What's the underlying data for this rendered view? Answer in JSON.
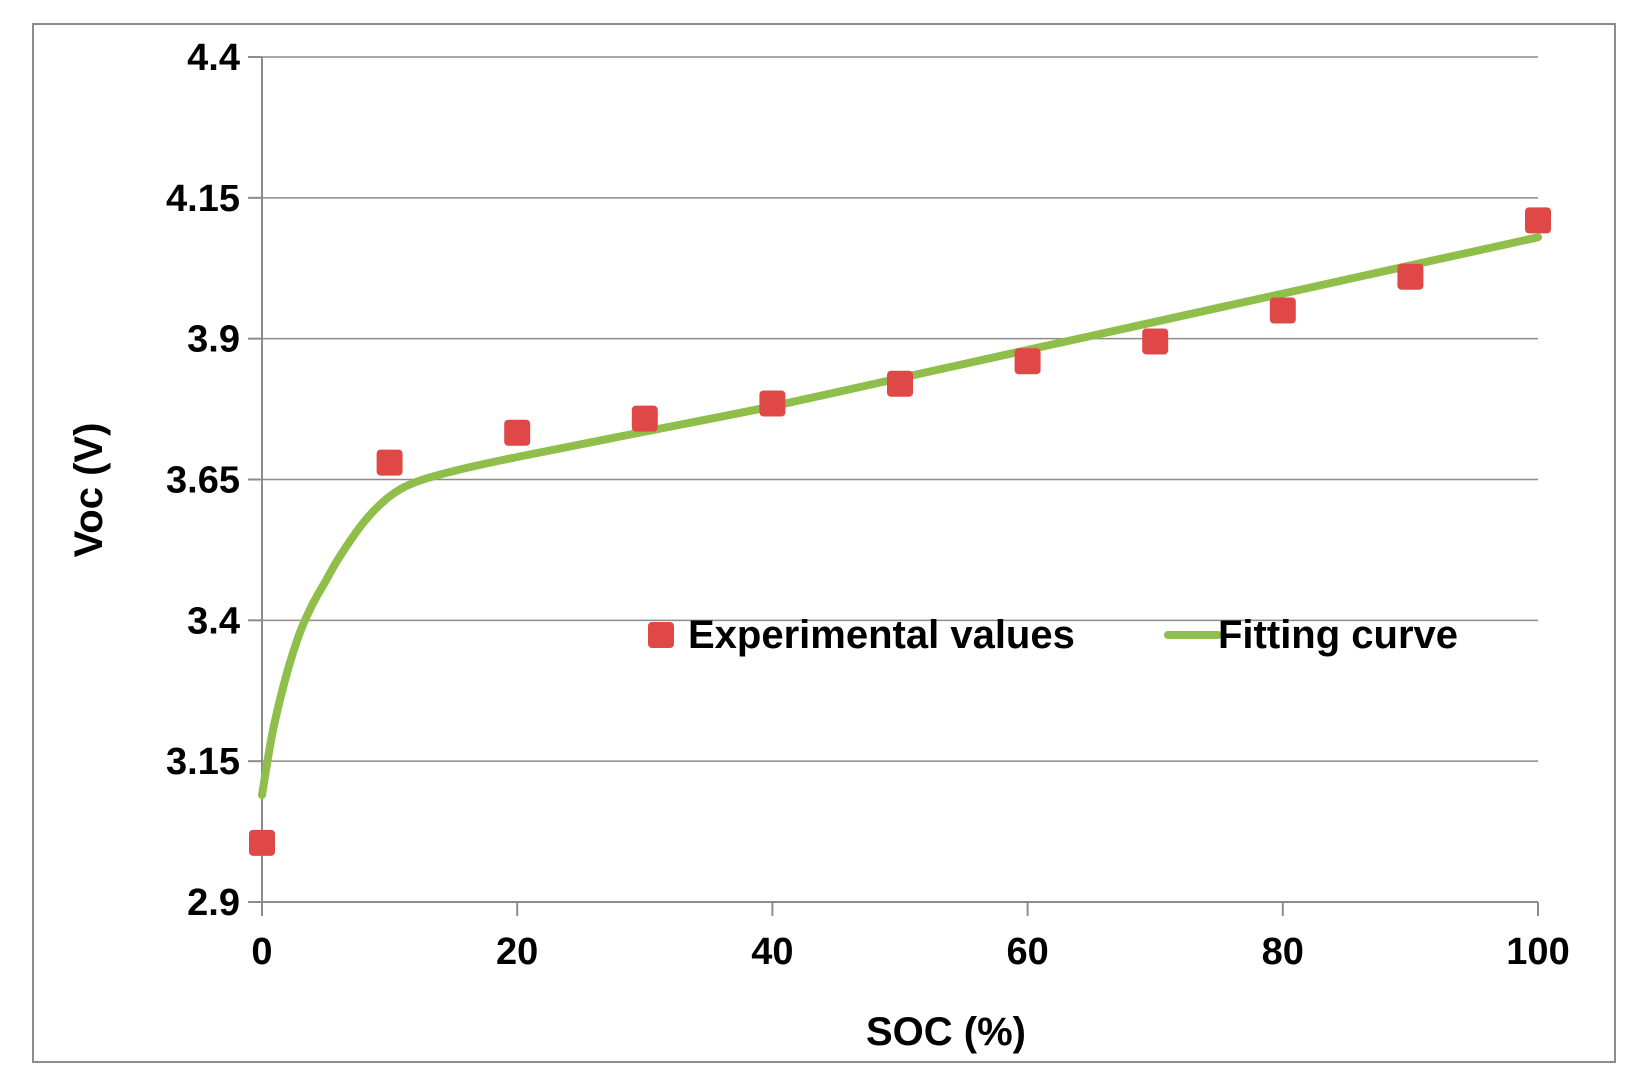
{
  "chart_data": {
    "type": "scatter",
    "title": "",
    "xlabel": "SOC (%)",
    "ylabel": "Voc (V)",
    "xlim": [
      0,
      100
    ],
    "ylim": [
      2.9,
      4.4
    ],
    "x_ticks": [
      "0",
      "20",
      "40",
      "60",
      "80",
      "100"
    ],
    "y_ticks": [
      "2.9",
      "3.15",
      "3.4",
      "3.65",
      "3.9",
      "4.15",
      "4.4"
    ],
    "grid": "horizontal",
    "legend_position": "center-right",
    "series": [
      {
        "name": "Experimental values",
        "kind": "scatter",
        "color": "#e04848",
        "x": [
          0,
          10,
          20,
          30,
          40,
          50,
          60,
          70,
          80,
          90,
          100
        ],
        "y": [
          3.005,
          3.68,
          3.733,
          3.758,
          3.785,
          3.82,
          3.86,
          3.895,
          3.95,
          4.01,
          4.11
        ]
      },
      {
        "name": "Fitting curve",
        "kind": "line",
        "color": "#8fbe4a",
        "x": [
          0,
          0.5,
          1,
          2,
          3,
          4,
          5,
          6,
          8,
          10,
          12,
          15,
          20,
          30,
          40,
          50,
          60,
          70,
          80,
          90,
          100
        ],
        "y": [
          3.09,
          3.16,
          3.22,
          3.31,
          3.38,
          3.43,
          3.47,
          3.51,
          3.575,
          3.62,
          3.645,
          3.665,
          3.69,
          3.735,
          3.78,
          3.83,
          3.88,
          3.93,
          3.98,
          4.03,
          4.08
        ]
      }
    ]
  }
}
